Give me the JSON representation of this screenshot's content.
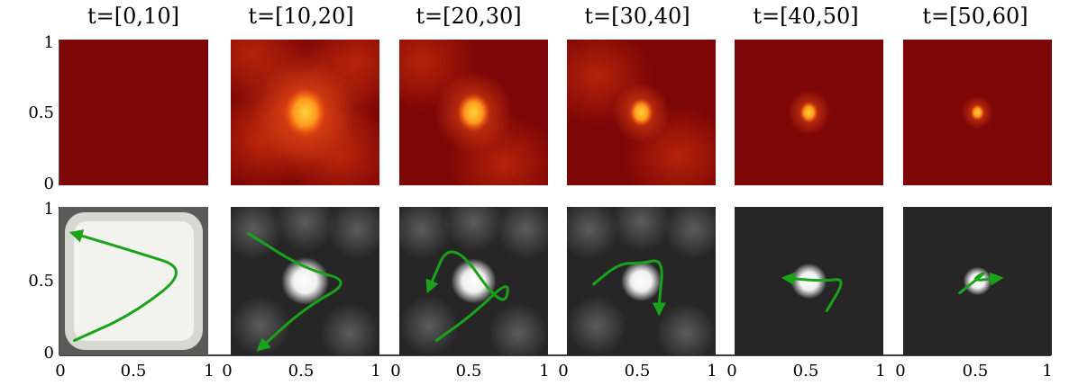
{
  "titles": [
    "t=[0,10]",
    "t=[10,20]",
    "t=[20,30]",
    "t=[30,40]",
    "t=[40,50]",
    "t=[50,60]"
  ],
  "y_ticks": [
    "0",
    "0.5",
    "1"
  ],
  "x_ticks": [
    "0",
    "0.5",
    "1"
  ],
  "colors": {
    "heat_base": "#7d0606",
    "heat_mid": "#c0280a",
    "heat_hot": "#ffd23a",
    "gray_base": "#262626",
    "gray_light": "#f2f2ee",
    "path_green": "#1aa31a"
  },
  "panels": [
    {
      "top": {
        "hot": 0.0,
        "spread": 0.0,
        "blobs": []
      },
      "bottom": {
        "background": "light-square",
        "path": [
          [
            0.1,
            0.1
          ],
          [
            0.5,
            0.28
          ],
          [
            0.88,
            0.58
          ],
          [
            0.5,
            0.7
          ],
          [
            0.1,
            0.82
          ]
        ],
        "arrow_end": true
      }
    },
    {
      "top": {
        "hot": 1.0,
        "spread": 0.14,
        "blobs": [
          [
            0.15,
            0.9
          ],
          [
            0.75,
            0.2
          ],
          [
            0.85,
            0.85
          ],
          [
            0.2,
            0.3
          ]
        ]
      },
      "bottom": {
        "background": "dark-blobs",
        "path": [
          [
            0.12,
            0.82
          ],
          [
            0.5,
            0.58
          ],
          [
            0.82,
            0.5
          ],
          [
            0.5,
            0.32
          ],
          [
            0.2,
            0.05
          ]
        ],
        "arrow_end": true
      }
    },
    {
      "top": {
        "hot": 0.9,
        "spread": 0.11,
        "blobs": [
          [
            0.15,
            0.85
          ],
          [
            0.7,
            0.15
          ]
        ]
      },
      "bottom": {
        "background": "dark-blobs",
        "path": [
          [
            0.25,
            0.1
          ],
          [
            0.5,
            0.28
          ],
          [
            0.75,
            0.52
          ],
          [
            0.7,
            0.3
          ],
          [
            0.35,
            0.8
          ],
          [
            0.2,
            0.45
          ]
        ],
        "arrow_end": true
      }
    },
    {
      "top": {
        "hot": 0.85,
        "spread": 0.08,
        "blobs": [
          [
            0.2,
            0.75
          ],
          [
            0.75,
            0.2
          ]
        ]
      },
      "bottom": {
        "background": "dark-blobs",
        "path": [
          [
            0.18,
            0.48
          ],
          [
            0.35,
            0.62
          ],
          [
            0.5,
            0.62
          ],
          [
            0.65,
            0.65
          ],
          [
            0.62,
            0.35
          ],
          [
            0.62,
            0.3
          ]
        ],
        "arrow_end": true
      }
    },
    {
      "top": {
        "hot": 0.8,
        "spread": 0.06,
        "blobs": []
      },
      "bottom": {
        "background": "dark",
        "path": [
          [
            0.62,
            0.3
          ],
          [
            0.75,
            0.52
          ],
          [
            0.6,
            0.5
          ],
          [
            0.35,
            0.52
          ]
        ],
        "arrow_end": true
      }
    },
    {
      "top": {
        "hot": 0.75,
        "spread": 0.045,
        "blobs": []
      },
      "bottom": {
        "background": "dark",
        "path": [
          [
            0.38,
            0.42
          ],
          [
            0.58,
            0.58
          ],
          [
            0.45,
            0.5
          ],
          [
            0.64,
            0.52
          ]
        ],
        "arrow_end": true
      }
    }
  ]
}
